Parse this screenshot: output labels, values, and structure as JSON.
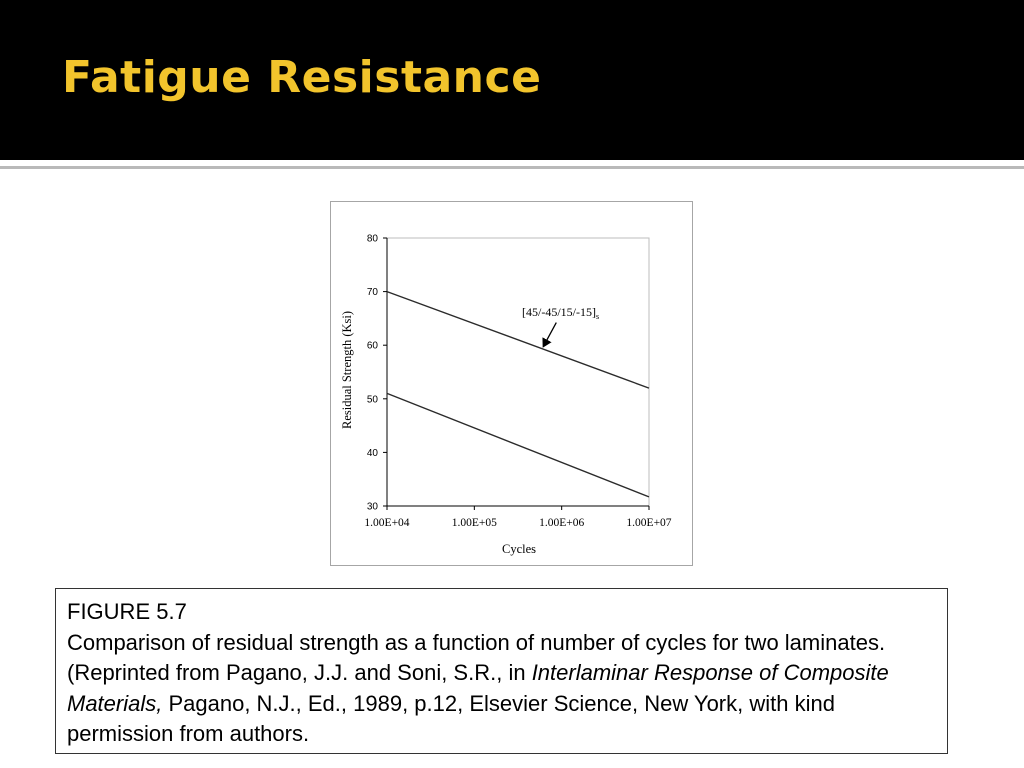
{
  "slide": {
    "title": "Fatigue Resistance"
  },
  "colors": {
    "title_bar": "#000000",
    "title_text": "#f2c42c",
    "series": "#2b2b2b"
  },
  "chart_data": {
    "type": "line",
    "title": "",
    "xlabel": "Cycles",
    "ylabel": "Residual Strength (Ksi)",
    "x_scale": "log",
    "xlim": [
      10000,
      10000000
    ],
    "ylim": [
      30,
      80
    ],
    "x_ticks": [
      {
        "value": 10000,
        "label": "1.00E+04"
      },
      {
        "value": 100000,
        "label": "1.00E+05"
      },
      {
        "value": 1000000,
        "label": "1.00E+06"
      },
      {
        "value": 10000000,
        "label": "1.00E+07"
      }
    ],
    "y_ticks": [
      {
        "value": 30,
        "label": "30"
      },
      {
        "value": 40,
        "label": "40"
      },
      {
        "value": 50,
        "label": "50"
      },
      {
        "value": 60,
        "label": "60"
      },
      {
        "value": 70,
        "label": "70"
      },
      {
        "value": 80,
        "label": "80"
      }
    ],
    "grid": false,
    "series": [
      {
        "x": [
          10000,
          10000000
        ],
        "y": [
          70,
          52
        ]
      },
      {
        "x": [
          10000,
          10000000
        ],
        "y": [
          51,
          31.7
        ]
      }
    ],
    "annotation": {
      "text": "[45/-45/15/-15]",
      "subscript": "s",
      "points_to": {
        "x": 600000,
        "y": 59
      }
    }
  },
  "caption": {
    "figure_label": "FIGURE 5.7",
    "text_before_italic": "Comparison of residual strength as a function of number of cycles for two laminates. (Reprinted from Pagano, J.J. and Soni, S.R., in ",
    "italic_title": "Interlaminar Response of Composite Materials,",
    "text_after_italic": " Pagano, N.J., Ed., 1989, p.12, Elsevier Science, New York, with kind permission from authors."
  }
}
